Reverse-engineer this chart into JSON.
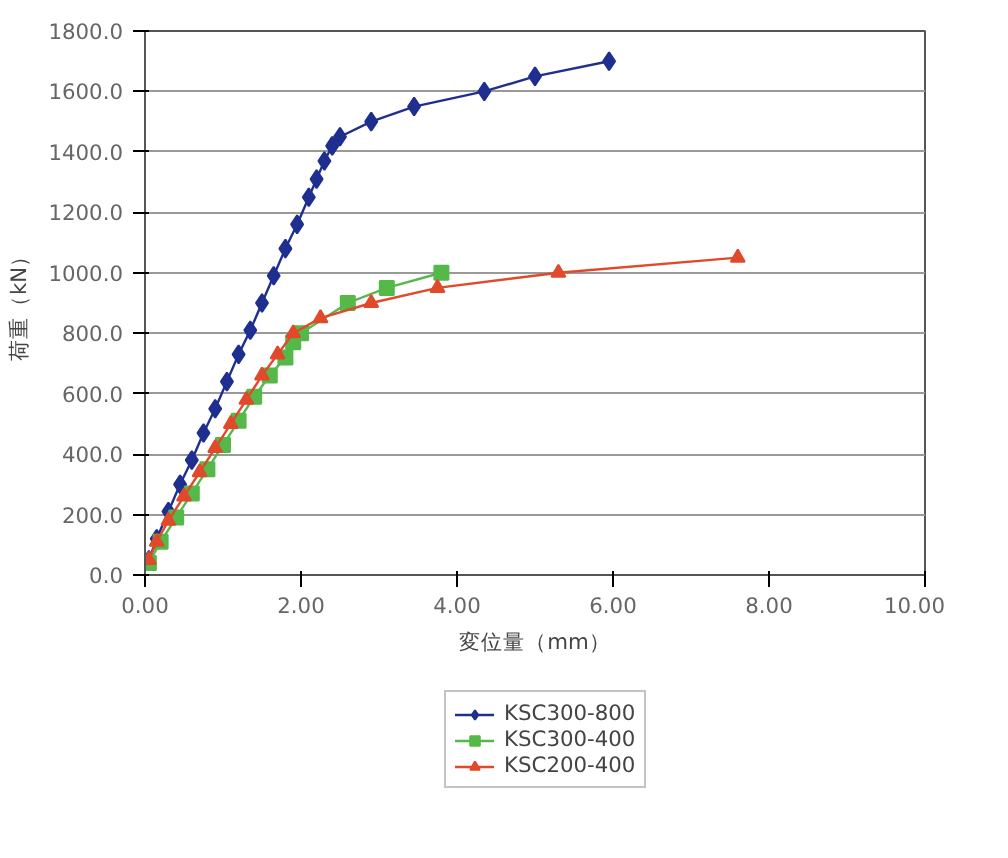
{
  "chart_data": {
    "type": "line",
    "xlabel": "変位量（mm）",
    "ylabel": "荷重（kN）",
    "xlim": [
      0,
      10
    ],
    "ylim": [
      0,
      1800
    ],
    "xticks": [
      {
        "value": 0,
        "label": "0.00"
      },
      {
        "value": 2,
        "label": "2.00"
      },
      {
        "value": 4,
        "label": "4.00"
      },
      {
        "value": 6,
        "label": "6.00"
      },
      {
        "value": 8,
        "label": "8.00"
      },
      {
        "value": 10,
        "label": "10.00"
      }
    ],
    "yticks": [
      {
        "value": 0,
        "label": "0.0"
      },
      {
        "value": 200,
        "label": "200.0"
      },
      {
        "value": 400,
        "label": "400.0"
      },
      {
        "value": 600,
        "label": "600.0"
      },
      {
        "value": 800,
        "label": "800.0"
      },
      {
        "value": 1000,
        "label": "1000.0"
      },
      {
        "value": 1200,
        "label": "1200.0"
      },
      {
        "value": 1400,
        "label": "1400.0"
      },
      {
        "value": 1600,
        "label": "1600.0"
      },
      {
        "value": 1800,
        "label": "1800.0"
      }
    ],
    "grid": "y",
    "legend": "bottom",
    "line_style": "solid",
    "series": [
      {
        "name": "KSC300-800",
        "color": "#1f2f8f",
        "marker": "diamond",
        "x": [
          0.05,
          0.15,
          0.3,
          0.45,
          0.6,
          0.75,
          0.9,
          1.05,
          1.2,
          1.35,
          1.5,
          1.65,
          1.8,
          1.95,
          2.1,
          2.2,
          2.3,
          2.4,
          2.5,
          2.9,
          3.45,
          4.35,
          5.0,
          5.95
        ],
        "values": [
          50,
          120,
          210,
          300,
          380,
          470,
          550,
          640,
          730,
          810,
          900,
          990,
          1080,
          1160,
          1250,
          1310,
          1370,
          1420,
          1450,
          1500,
          1550,
          1600,
          1650,
          1700
        ]
      },
      {
        "name": "KSC300-400",
        "color": "#55b94a",
        "marker": "square",
        "x": [
          0.05,
          0.2,
          0.4,
          0.6,
          0.8,
          1.0,
          1.2,
          1.4,
          1.6,
          1.8,
          1.9,
          2.0,
          2.6,
          3.1,
          3.8
        ],
        "values": [
          40,
          110,
          190,
          270,
          350,
          430,
          510,
          590,
          660,
          720,
          770,
          800,
          900,
          950,
          1000
        ]
      },
      {
        "name": "KSC200-400",
        "color": "#e04a2a",
        "marker": "triangle",
        "x": [
          0.05,
          0.15,
          0.3,
          0.5,
          0.7,
          0.9,
          1.1,
          1.3,
          1.5,
          1.7,
          1.9,
          2.25,
          2.9,
          3.75,
          5.3,
          7.6
        ],
        "values": [
          50,
          110,
          180,
          260,
          340,
          420,
          500,
          580,
          660,
          730,
          800,
          850,
          900,
          950,
          1000,
          1050
        ]
      }
    ]
  }
}
